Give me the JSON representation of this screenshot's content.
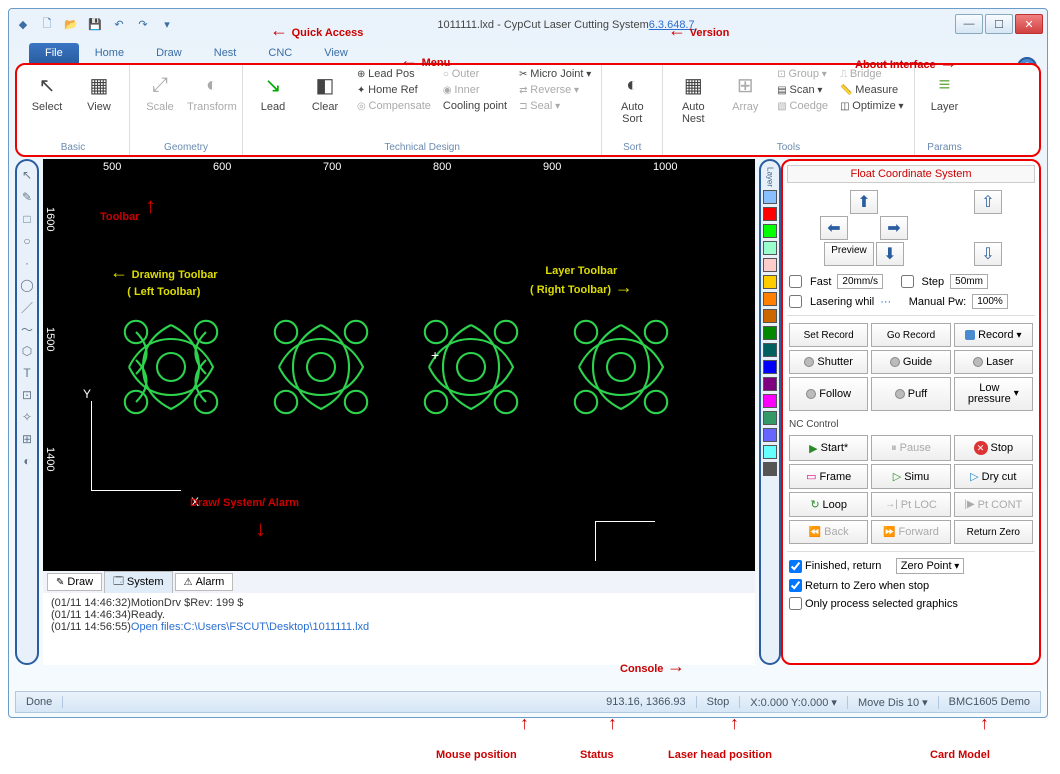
{
  "title": {
    "file": "1011111.lxd",
    "app": " - CypCut Laser Cutting System",
    "ver": "6.3.648.7"
  },
  "menu": {
    "file": "File",
    "tabs": [
      "Home",
      "Draw",
      "Nest",
      "CNC",
      "View"
    ]
  },
  "ribbon": {
    "basic": {
      "label": "Basic",
      "select": "Select",
      "view": "View"
    },
    "geometry": {
      "label": "Geometry",
      "scale": "Scale",
      "transform": "Transform"
    },
    "lead": {
      "lead": "Lead",
      "clear": "Clear"
    },
    "tech": {
      "label": "Technical Design",
      "leadpos": "Lead Pos",
      "homeref": "Home Ref",
      "comp": "Compensate",
      "outer": "Outer",
      "inner": "Inner",
      "cool": "Cooling point",
      "micro": "Micro Joint",
      "reverse": "Reverse",
      "seal": "Seal"
    },
    "sort": {
      "label": "Sort",
      "auto": "Auto\nSort"
    },
    "nest": {
      "auto": "Auto\nNest"
    },
    "tools": {
      "label": "Tools",
      "array": "Array",
      "group": "Group",
      "scan": "Scan",
      "coedge": "Coedge",
      "bridge": "Bridge",
      "measure": "Measure",
      "optimize": "Optimize"
    },
    "params": {
      "label": "Params",
      "layer": "Layer"
    }
  },
  "ruler_h": [
    "500",
    "600",
    "700",
    "800",
    "900",
    "1000"
  ],
  "ruler_v": [
    "1600",
    "1500",
    "1400"
  ],
  "axis": {
    "x": "X",
    "y": "Y"
  },
  "pattern_color": "#2dd24d",
  "tabs_b": {
    "draw": "Draw",
    "system": "System",
    "alarm": "Alarm"
  },
  "log": [
    {
      "t": "(01/11 14:46:32)MotionDrv $Rev: 199 $"
    },
    {
      "t": "(01/11 14:46:34)Ready."
    },
    {
      "t": "(01/11 14:56:55)",
      "link": "Open files:C:\\Users\\FSCUT\\Desktop\\1011111.lxd"
    }
  ],
  "layer_colors": [
    "#88c0ff",
    "#ff0000",
    "#00ff00",
    "#99ffcc",
    "#ffcccc",
    "#ffcc00",
    "#ff8000",
    "#cc6600",
    "#008800",
    "#006060",
    "#0000ff",
    "#800080",
    "#ff00ff",
    "#339966",
    "#6666ff",
    "#66ffff",
    "#555555"
  ],
  "console": {
    "title": "Float Coordinate System",
    "preview": "Preview",
    "fast": "Fast",
    "fast_v": "20mm/s",
    "step": "Step",
    "step_v": "50mm",
    "lasering": "Lasering whil",
    "manual": "Manual Pw:",
    "manual_v": "100%",
    "setrec": "Set Record",
    "gorec": "Go Record",
    "record": "Record",
    "shutter": "Shutter",
    "guide": "Guide",
    "laser": "Laser",
    "follow": "Follow",
    "puff": "Puff",
    "lowp": "Low\npressure",
    "nc": "NC Control",
    "start": "Start*",
    "pause": "Pause",
    "stop": "Stop",
    "frame": "Frame",
    "simu": "Simu",
    "drycut": "Dry cut",
    "loop": "Loop",
    "ptloc": "Pt LOC",
    "ptcont": "Pt CONT",
    "back": "Back",
    "forward": "Forward",
    "retzero": "Return Zero",
    "finished": "Finished, return",
    "zeropt": "Zero Point",
    "ret2zero": "Return to Zero when stop",
    "onlysel": "Only process selected graphics"
  },
  "status": {
    "done": "Done",
    "mouse": "913.16, 1366.93",
    "stop": "Stop",
    "laser": "X:0.000 Y:0.000",
    "movedis": "Move Dis",
    "movev": "10",
    "card": "BMC1605 Demo"
  },
  "anno": {
    "qa": "Quick Access",
    "ver": "Version",
    "menu": "Menu",
    "about": "About Interface",
    "toolbar": "Toolbar",
    "drawtb": "Drawing Toolbar\n( Left Toolbar)",
    "layertb": "Layer Toolbar\n( Right Toolbar)",
    "dsa": "Draw/ System/ Alarm",
    "console": "Console",
    "mousepos": "Mouse position",
    "statuslbl": "Status",
    "laserpos": "Laser head position",
    "cardmodel": "Card Model"
  }
}
